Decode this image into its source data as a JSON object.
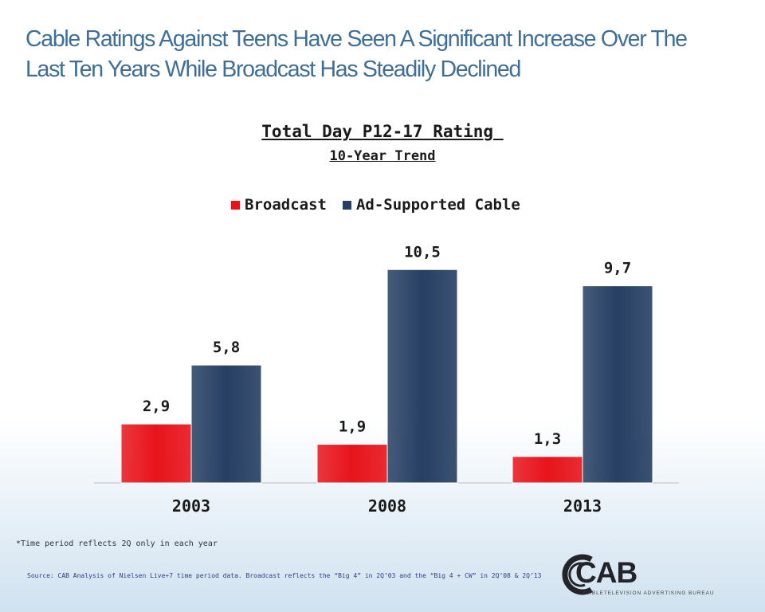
{
  "headline": {
    "line1": "Cable Ratings Against Teens Have Seen A Significant Increase Over The",
    "line2": "Last Ten Years While Broadcast Has Steadily Declined"
  },
  "chart_data": {
    "type": "bar",
    "title": "Total Day P12-17 Rating ",
    "subtitle": "10-Year Trend",
    "categories": [
      "2003",
      "2008",
      "2013"
    ],
    "series": [
      {
        "name": "Broadcast",
        "values": [
          2.9,
          1.9,
          1.3
        ],
        "labels": [
          "2,9",
          "1,9",
          "1,3"
        ],
        "color": "#e8141b"
      },
      {
        "name": "Ad-Supported Cable",
        "values": [
          5.8,
          10.5,
          9.7
        ],
        "labels": [
          "5,8",
          "10,5",
          "9,7"
        ],
        "color": "#263f63"
      }
    ],
    "ylim": [
      0,
      12
    ],
    "grid": false,
    "legend_position": "top"
  },
  "footnote": "*Time period reflects 2Q only in each year",
  "source": "Source: CAB Analysis of Nielsen Live+7 time period data. Broadcast reflects the “Big 4” in 2Q’03 and the “Big 4 + CW” in 2Q’08 & 2Q’13",
  "logo": {
    "text": "CAB",
    "subtitle": "CABLETELEVISION ADVERTISING BUREAU",
    "color": "#23242a"
  }
}
